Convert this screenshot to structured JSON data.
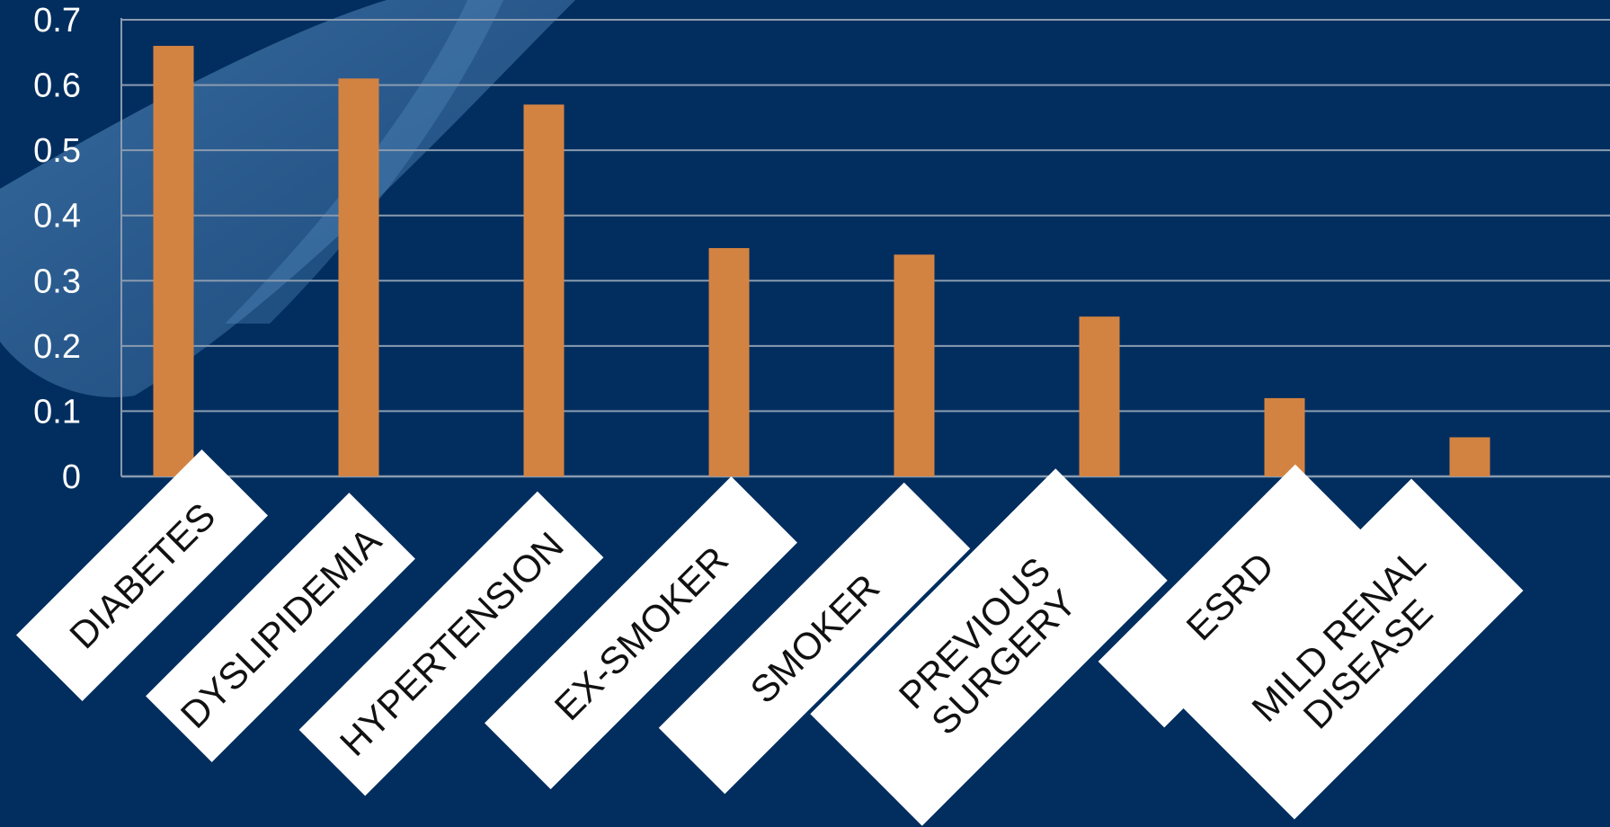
{
  "chart_data": {
    "type": "bar",
    "title": "",
    "xlabel": "",
    "ylabel": "",
    "categories": [
      "DIABETES",
      "DYSLIPIDEMIA",
      "HYPERTENSION",
      "EX-SMOKER",
      "SMOKER",
      "PREVIOUS SURGERY",
      "ESRD",
      "MILD RENAL DISEASE"
    ],
    "values": [
      0.66,
      0.61,
      0.57,
      0.35,
      0.34,
      0.245,
      0.12,
      0.06
    ],
    "ylim": [
      0,
      0.7
    ],
    "yticks": [
      "0",
      "0.1",
      "0.2",
      "0.3",
      "0.4",
      "0.5",
      "0.6",
      "0.7"
    ],
    "grid": true,
    "legend": "none",
    "colors": {
      "background": "#022e5f",
      "bar": "#d38341",
      "grid": "#8a9bb0",
      "tick_text": "#ffffff",
      "label_box": "#ffffff",
      "label_text": "#111111"
    }
  }
}
